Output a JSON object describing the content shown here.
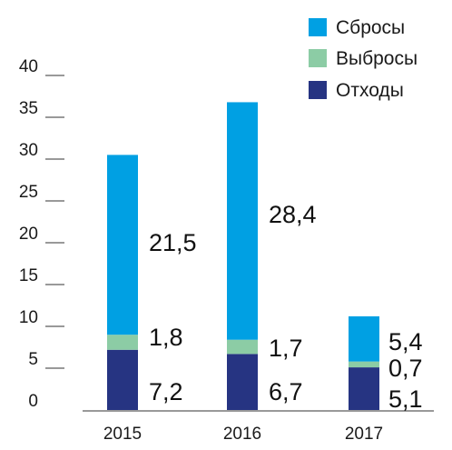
{
  "chart_data": {
    "type": "bar",
    "stacked": true,
    "categories": [
      "2015",
      "2016",
      "2017"
    ],
    "series": [
      {
        "name": "Отходы",
        "values": [
          7.2,
          6.7,
          5.1
        ],
        "labels": [
          "7,2",
          "6,7",
          "5,1"
        ],
        "color": "#263482"
      },
      {
        "name": "Выбросы",
        "values": [
          1.8,
          1.7,
          0.7
        ],
        "labels": [
          "1,8",
          "1,7",
          "0,7"
        ],
        "color": "#8ccca5"
      },
      {
        "name": "Сбросы",
        "values": [
          21.5,
          28.4,
          5.4
        ],
        "labels": [
          "21,5",
          "28,4",
          "5,4"
        ],
        "color": "#00a0e3"
      }
    ],
    "legend_order": [
      "Сбросы",
      "Выбросы",
      "Отходы"
    ],
    "yticks": [
      0,
      5,
      10,
      15,
      20,
      25,
      30,
      35,
      40
    ],
    "ylim": [
      0,
      40
    ],
    "legend_position": "top-right",
    "grid": false
  }
}
